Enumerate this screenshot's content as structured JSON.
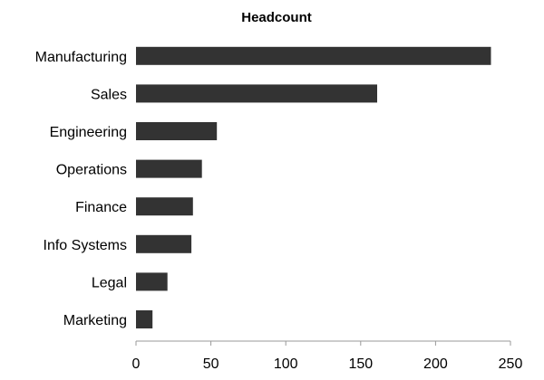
{
  "chart_data": {
    "type": "bar",
    "orientation": "horizontal",
    "title": "Headcount",
    "xlabel": "",
    "ylabel": "",
    "categories": [
      "Manufacturing",
      "Sales",
      "Engineering",
      "Operations",
      "Finance",
      "Info Systems",
      "Legal",
      "Marketing"
    ],
    "values": [
      237,
      161,
      54,
      44,
      38,
      37,
      21,
      11
    ],
    "xlim": [
      0,
      250
    ],
    "xticks": [
      0,
      50,
      100,
      150,
      200,
      250
    ],
    "grid": false,
    "legend": "none",
    "bar_color": "#333333"
  }
}
